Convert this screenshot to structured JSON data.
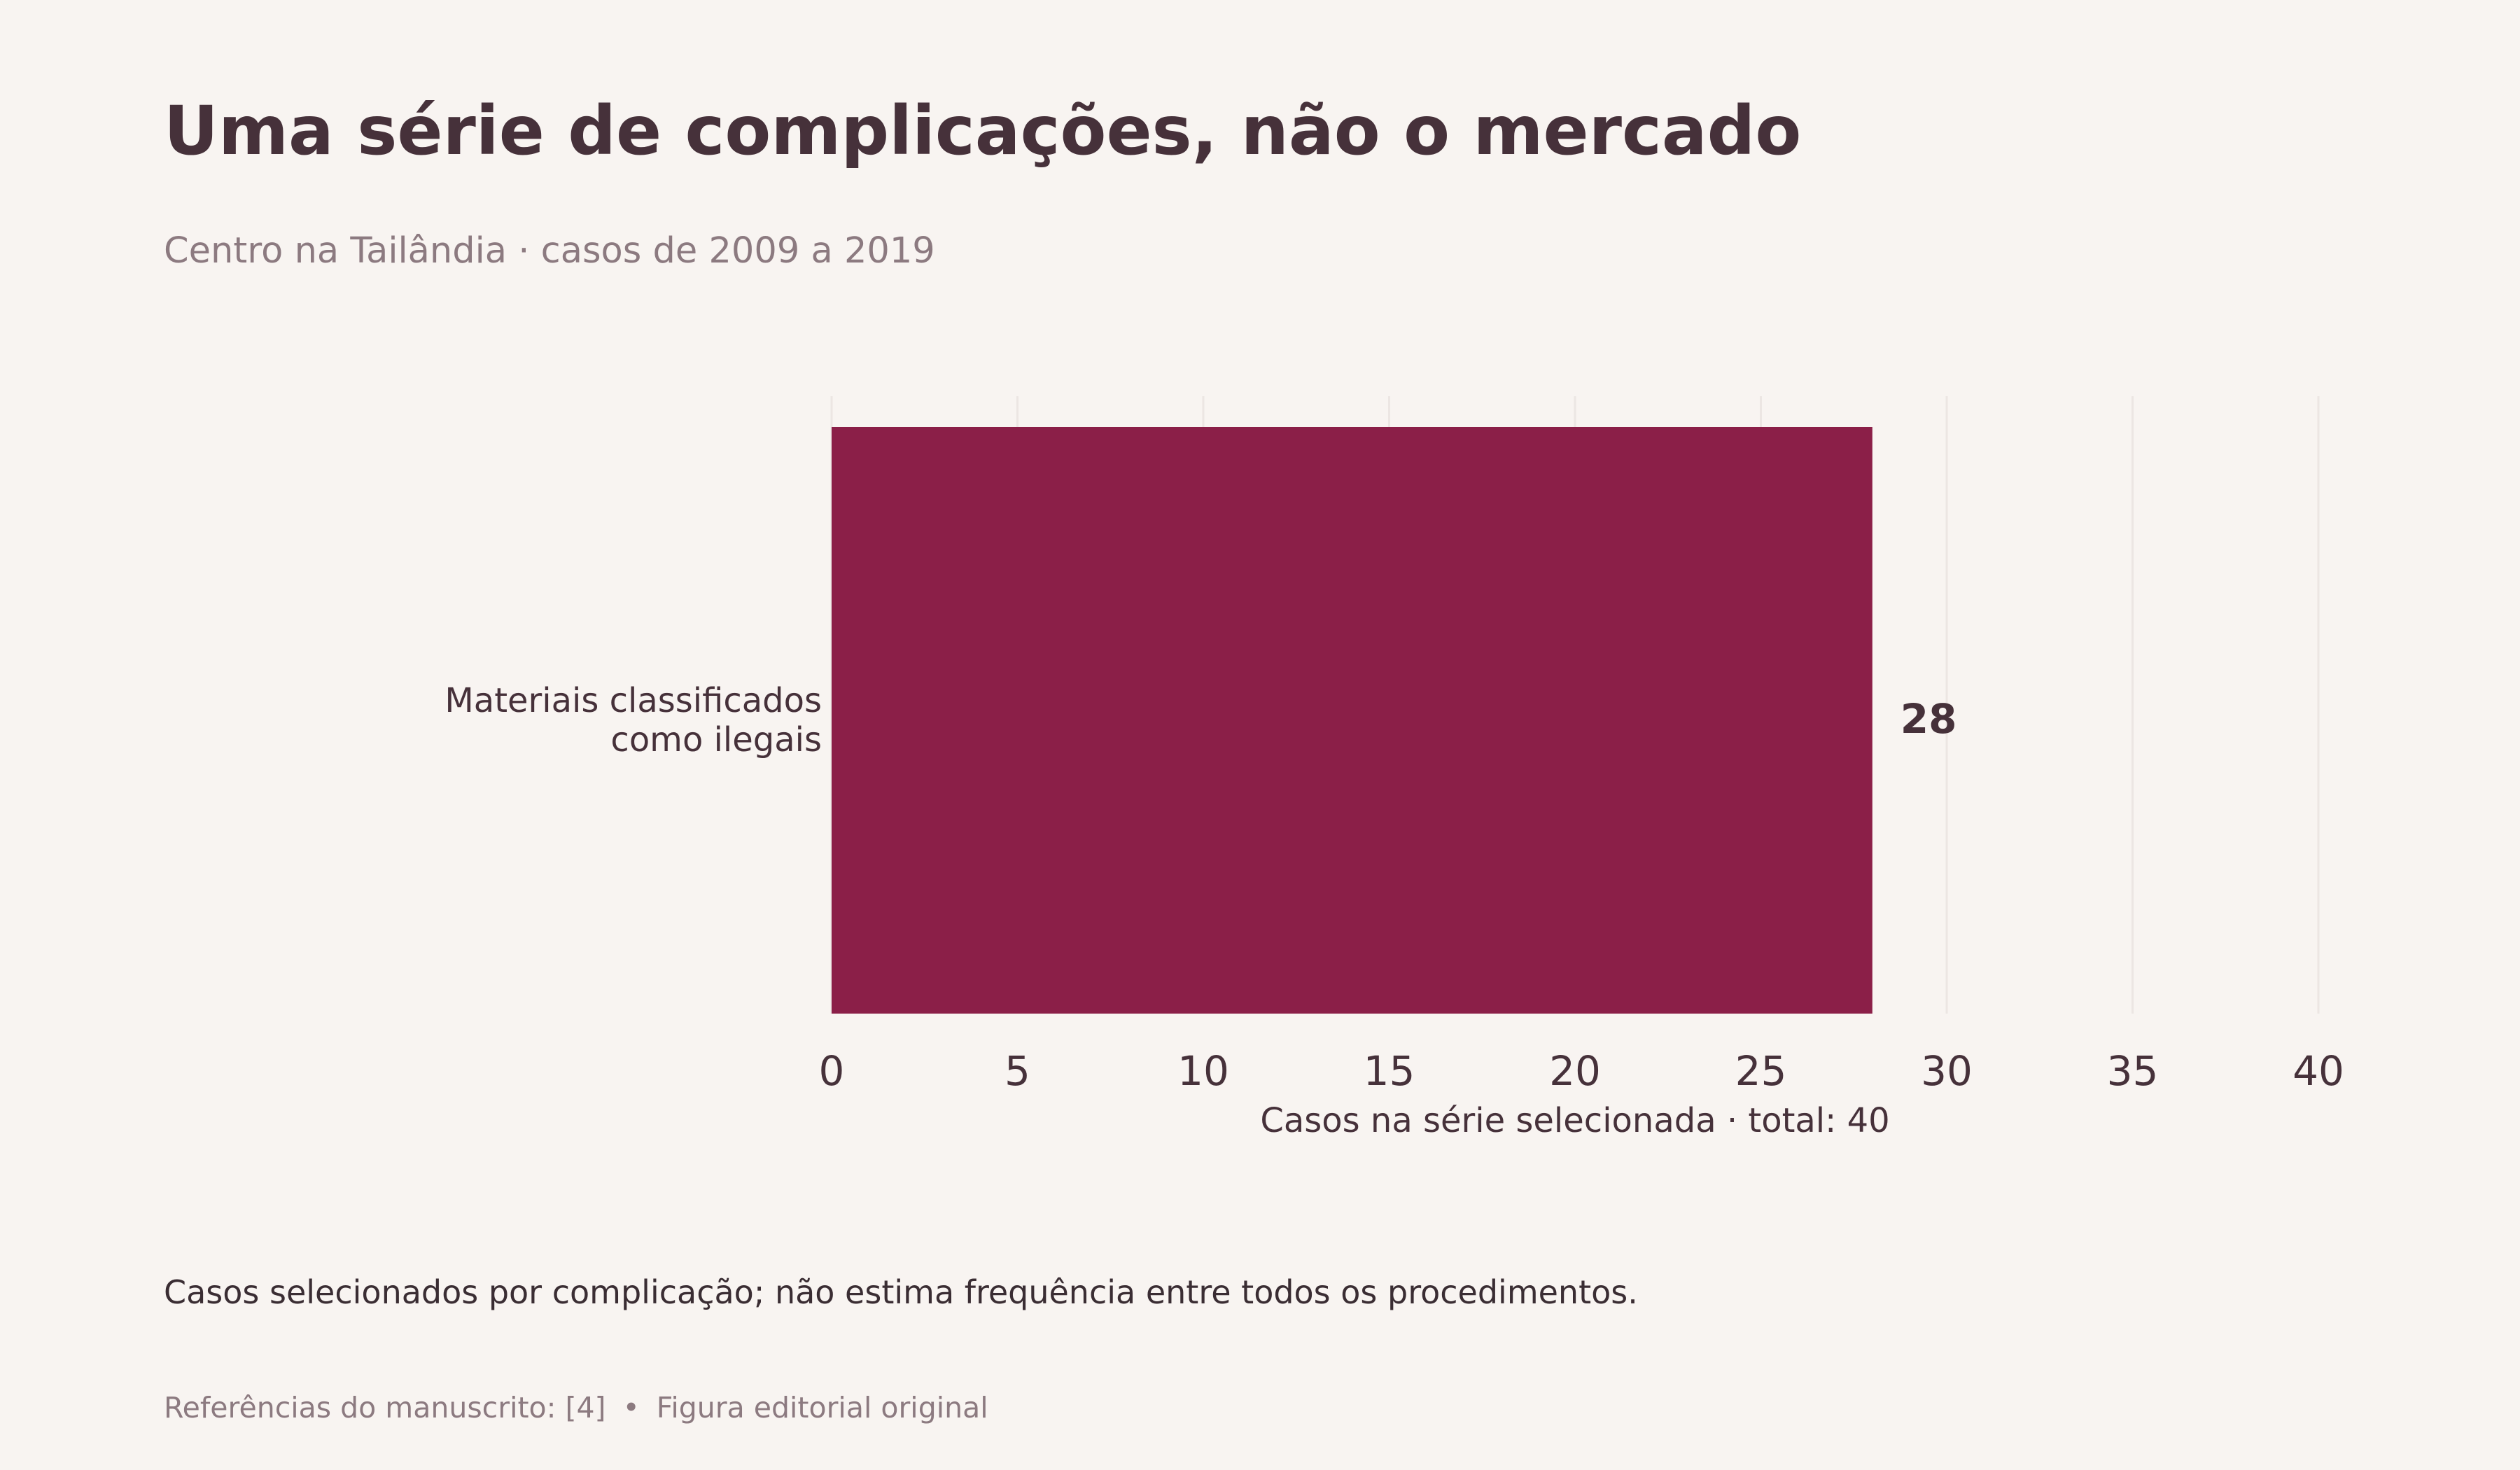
{
  "title": "Uma série de complicações, não o mercado",
  "subtitle": "Centro na Tailândia · casos de 2009 a 2019",
  "note": "Casos selecionados por complicação; não estima frequência entre todos os procedimentos.",
  "footer": {
    "references": "Referências do manuscrito: [4]",
    "separator": "•",
    "credit": "Figura editorial original"
  },
  "colors": {
    "background": "#f8f4f1",
    "bar": "#8b1f48",
    "text": "#46313a",
    "muted": "#8c7a80",
    "grid": "#ece6e3"
  },
  "chart_data": {
    "type": "bar",
    "orientation": "horizontal",
    "categories": [
      [
        "Materiais classificados",
        "como ilegais"
      ]
    ],
    "values": [
      28
    ],
    "value_labels": [
      "28"
    ],
    "xlabel": "Casos na série selecionada · total: 40",
    "ylabel": "",
    "xlim": [
      0,
      40
    ],
    "xticks": [
      0,
      5,
      10,
      15,
      20,
      25,
      30,
      35,
      40
    ],
    "grid": "vertical",
    "legend": "none"
  }
}
